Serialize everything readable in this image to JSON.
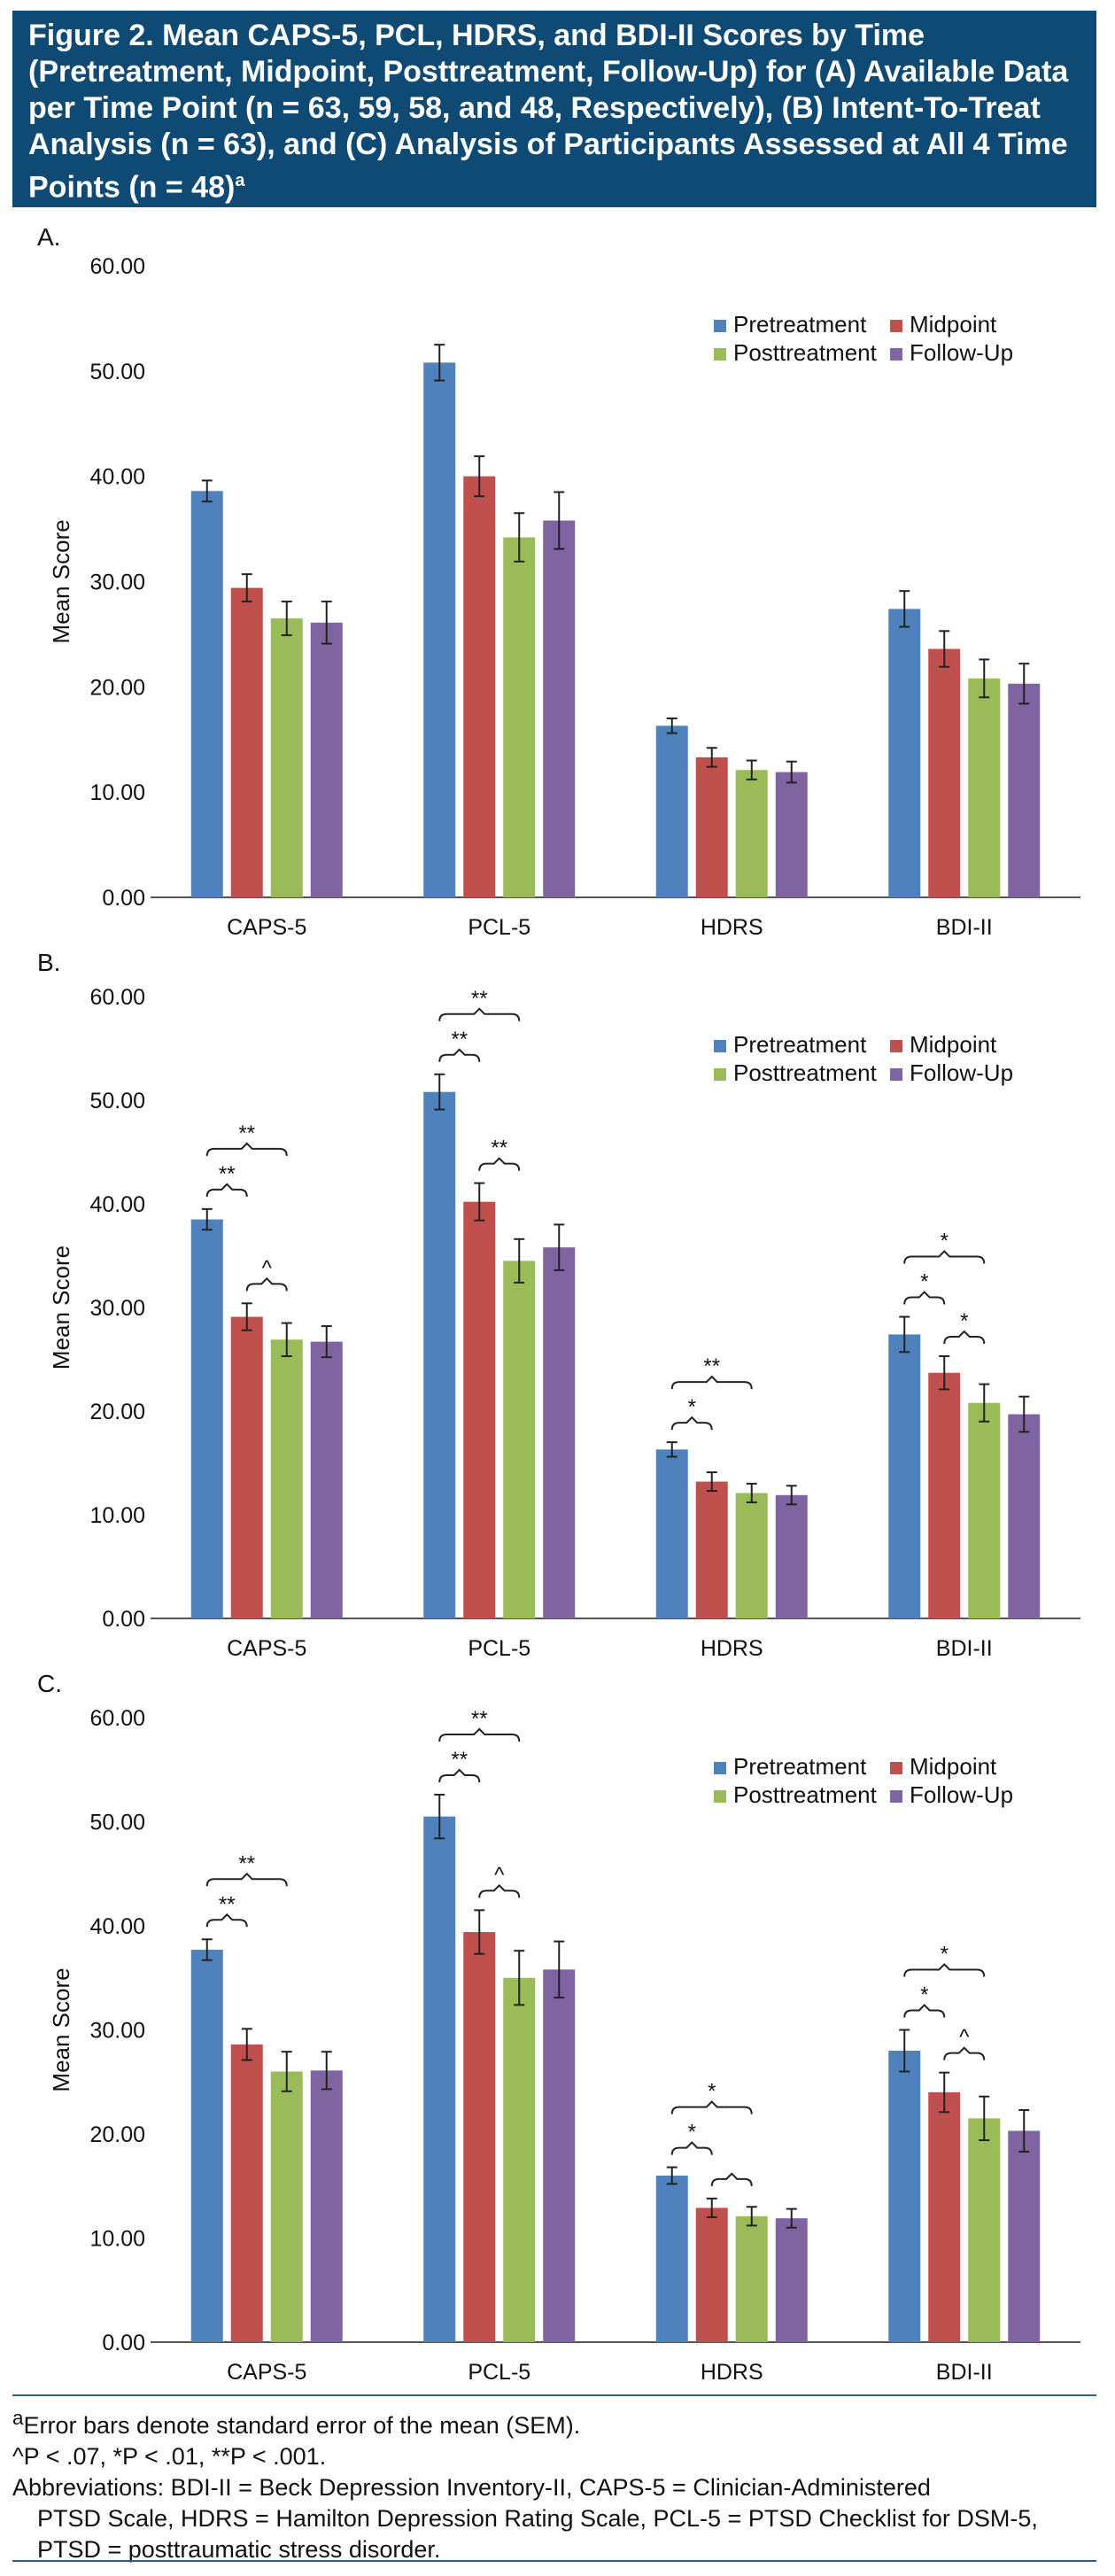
{
  "figure": {
    "title": "Figure 2. Mean CAPS-5, PCL, HDRS, and BDI-II Scores by Time (Pretreatment, Midpoint, Posttreatment, Follow-Up) for (A) Available Data per Time Point (n = 63, 59, 58, and 48, Respectively), (B) Intent-To-Treat Analysis (n = 63), and (C) Analysis of Participants Assessed at All 4 Time Points (n = 48)",
    "title_sup": "a"
  },
  "colors": {
    "header_bg": "#0f4a74",
    "pre": "#4f81bd",
    "mid": "#c0504d",
    "post": "#9bbb59",
    "fu": "#8064a2"
  },
  "footnotes": {
    "a_mark": "a",
    "a_text": "Error bars denote standard error of the mean (SEM).",
    "sig": "^P < .07, *P < .01, **P < .001.",
    "abbr_1": "Abbreviations: BDI-II = Beck Depression Inventory-II, CAPS-5 = Clinician-Administered",
    "abbr_2": "PTSD Scale, HDRS = Hamilton Depression Rating Scale, PCL-5 = PTSD Checklist for DSM-5,",
    "abbr_3": "PTSD = posttraumatic stress disorder."
  },
  "chart_data": [
    {
      "type": "bar",
      "panel": "A.",
      "ylabel": "Mean Score",
      "ylim": [
        0,
        60
      ],
      "yticks": [
        "0.00",
        "10.00",
        "20.00",
        "30.00",
        "40.00",
        "50.00",
        "60.00"
      ],
      "categories": [
        "CAPS-5",
        "PCL-5",
        "HDRS",
        "BDI-II"
      ],
      "legend": "top-right",
      "series": [
        {
          "name": "Pretreatment",
          "values": [
            38.6,
            50.8,
            16.3,
            27.4
          ],
          "errors": [
            1.0,
            1.7,
            0.7,
            1.7
          ]
        },
        {
          "name": "Midpoint",
          "values": [
            29.4,
            40.0,
            13.3,
            23.6
          ],
          "errors": [
            1.3,
            1.9,
            0.9,
            1.7
          ]
        },
        {
          "name": "Posttreatment",
          "values": [
            26.5,
            34.2,
            12.1,
            20.8
          ],
          "errors": [
            1.6,
            2.3,
            0.9,
            1.8
          ]
        },
        {
          "name": "Follow-Up",
          "values": [
            26.1,
            35.8,
            11.9,
            20.3
          ],
          "errors": [
            2.0,
            2.7,
            1.0,
            1.9
          ]
        }
      ],
      "brackets": []
    },
    {
      "type": "bar",
      "panel": "B.",
      "ylabel": "Mean Score",
      "ylim": [
        0,
        60
      ],
      "yticks": [
        "0.00",
        "10.00",
        "20.00",
        "30.00",
        "40.00",
        "50.00",
        "60.00"
      ],
      "categories": [
        "CAPS-5",
        "PCL-5",
        "HDRS",
        "BDI-II"
      ],
      "legend": "top-right",
      "series": [
        {
          "name": "Pretreatment",
          "values": [
            38.5,
            50.8,
            16.3,
            27.4
          ],
          "errors": [
            1.0,
            1.7,
            0.7,
            1.7
          ]
        },
        {
          "name": "Midpoint",
          "values": [
            29.1,
            40.2,
            13.2,
            23.7
          ],
          "errors": [
            1.3,
            1.8,
            0.9,
            1.6
          ]
        },
        {
          "name": "Posttreatment",
          "values": [
            26.9,
            34.5,
            12.1,
            20.8
          ],
          "errors": [
            1.6,
            2.1,
            0.9,
            1.8
          ]
        },
        {
          "name": "Follow-Up",
          "values": [
            26.7,
            35.8,
            11.9,
            19.7
          ],
          "errors": [
            1.5,
            2.2,
            0.9,
            1.7
          ]
        }
      ],
      "brackets": [
        {
          "cat": 0,
          "from": 0,
          "to": 1,
          "level": 1,
          "label": "**"
        },
        {
          "cat": 0,
          "from": 1,
          "to": 2,
          "level": 1,
          "label": "^"
        },
        {
          "cat": 0,
          "from": 0,
          "to": 2,
          "level": 2,
          "label": "**"
        },
        {
          "cat": 1,
          "from": 0,
          "to": 1,
          "level": 1,
          "label": "**"
        },
        {
          "cat": 1,
          "from": 1,
          "to": 2,
          "level": 1,
          "label": "**"
        },
        {
          "cat": 1,
          "from": 0,
          "to": 2,
          "level": 2,
          "label": "**"
        },
        {
          "cat": 2,
          "from": 0,
          "to": 1,
          "level": 1,
          "label": "*"
        },
        {
          "cat": 2,
          "from": 0,
          "to": 2,
          "level": 2,
          "label": "**"
        },
        {
          "cat": 3,
          "from": 0,
          "to": 1,
          "level": 1,
          "label": "*"
        },
        {
          "cat": 3,
          "from": 1,
          "to": 2,
          "level": 1,
          "label": "*"
        },
        {
          "cat": 3,
          "from": 0,
          "to": 2,
          "level": 2,
          "label": "*"
        }
      ]
    },
    {
      "type": "bar",
      "panel": "C.",
      "ylabel": "Mean Score",
      "ylim": [
        0,
        60
      ],
      "yticks": [
        "0.00",
        "10.00",
        "20.00",
        "30.00",
        "40.00",
        "50.00",
        "60.00"
      ],
      "categories": [
        "CAPS-5",
        "PCL-5",
        "HDRS",
        "BDI-II"
      ],
      "legend": "top-right",
      "series": [
        {
          "name": "Pretreatment",
          "values": [
            37.7,
            50.5,
            16.0,
            28.0
          ],
          "errors": [
            1.0,
            2.1,
            0.8,
            2.0
          ]
        },
        {
          "name": "Midpoint",
          "values": [
            28.6,
            39.4,
            12.9,
            24.0
          ],
          "errors": [
            1.5,
            2.1,
            0.9,
            1.9
          ]
        },
        {
          "name": "Posttreatment",
          "values": [
            26.0,
            35.0,
            12.1,
            21.5
          ],
          "errors": [
            1.9,
            2.6,
            0.9,
            2.1
          ]
        },
        {
          "name": "Follow-Up",
          "values": [
            26.1,
            35.8,
            11.9,
            20.3
          ],
          "errors": [
            1.8,
            2.7,
            0.9,
            2.0
          ]
        }
      ],
      "brackets": [
        {
          "cat": 0,
          "from": 0,
          "to": 1,
          "level": 1,
          "label": "**"
        },
        {
          "cat": 0,
          "from": 0,
          "to": 2,
          "level": 2,
          "label": "**"
        },
        {
          "cat": 1,
          "from": 0,
          "to": 1,
          "level": 1,
          "label": "**"
        },
        {
          "cat": 1,
          "from": 1,
          "to": 2,
          "level": 1,
          "label": "^"
        },
        {
          "cat": 1,
          "from": 0,
          "to": 2,
          "level": 2,
          "label": "**"
        },
        {
          "cat": 2,
          "from": 0,
          "to": 1,
          "level": 1,
          "label": "*"
        },
        {
          "cat": 2,
          "from": 1,
          "to": 2,
          "level": 1,
          "label": ""
        },
        {
          "cat": 2,
          "from": 0,
          "to": 2,
          "level": 2,
          "label": "*"
        },
        {
          "cat": 3,
          "from": 0,
          "to": 1,
          "level": 1,
          "label": "*"
        },
        {
          "cat": 3,
          "from": 1,
          "to": 2,
          "level": 1,
          "label": "^"
        },
        {
          "cat": 3,
          "from": 0,
          "to": 2,
          "level": 2,
          "label": "*"
        }
      ]
    }
  ]
}
